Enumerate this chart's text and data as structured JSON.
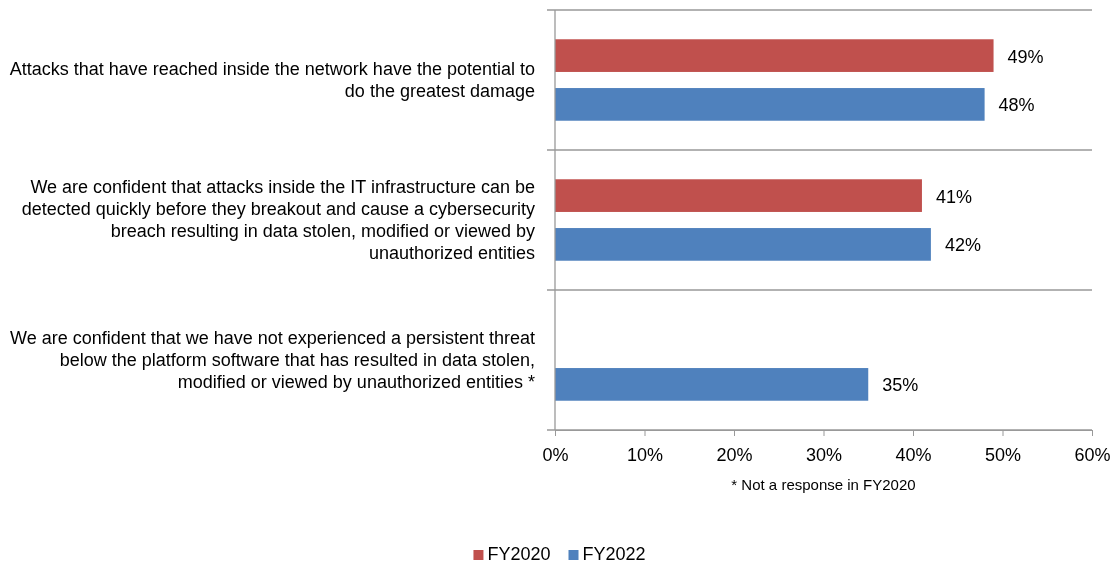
{
  "chart_data": {
    "type": "bar",
    "orientation": "horizontal",
    "categories": [
      "Attacks that have reached inside the network have the potential to do the greatest damage",
      "We are confident that attacks inside the IT infrastructure can be detected quickly before they breakout and cause a cybersecurity breach resulting in data stolen, modified or viewed by unauthorized entities",
      "We are confident that we have not experienced a persistent threat below the platform software that has resulted in data stolen, modified or viewed by unauthorized entities *"
    ],
    "series": [
      {
        "name": "FY2020",
        "color": "#c0504d",
        "values": [
          49,
          41,
          null
        ],
        "value_labels": [
          "49%",
          "41%",
          null
        ]
      },
      {
        "name": "FY2022",
        "color": "#4f81bd",
        "values": [
          48,
          42,
          35
        ],
        "value_labels": [
          "48%",
          "42%",
          "35%"
        ]
      }
    ],
    "xlim": [
      0,
      60
    ],
    "xticks": [
      {
        "value": 0,
        "label": "0%"
      },
      {
        "value": 10,
        "label": "10%"
      },
      {
        "value": 20,
        "label": "20%"
      },
      {
        "value": 30,
        "label": "30%"
      },
      {
        "value": 40,
        "label": "40%"
      },
      {
        "value": 50,
        "label": "50%"
      },
      {
        "value": 60,
        "label": "60%"
      }
    ],
    "grid": "y",
    "legend": "bottom",
    "annotations": [
      "* Not a response in FY2020"
    ]
  }
}
